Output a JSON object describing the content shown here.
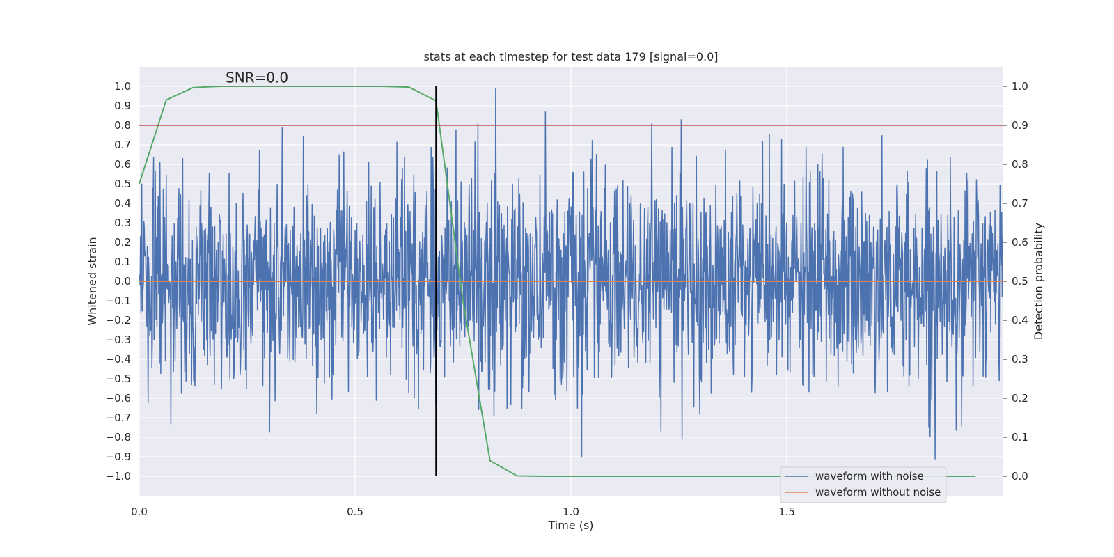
{
  "chart_data": {
    "type": "line",
    "title": "stats at each timestep for test data 179 [signal=0.0]",
    "xlabel": "Time (s)",
    "ylabel_left": "Whitened strain",
    "ylabel_right": "Detection probability",
    "xlim": [
      0.0,
      2.0
    ],
    "ylim_left": [
      -1.1,
      1.1
    ],
    "ylim_right": [
      -0.05,
      1.05
    ],
    "x_ticks": [
      0.0,
      0.5,
      1.0,
      1.5
    ],
    "x_tick_labels": [
      "0.0",
      "0.5",
      "1.0",
      "1.5"
    ],
    "y_left_ticks": [
      1.0,
      0.9,
      0.8,
      0.7,
      0.6,
      0.5,
      0.4,
      0.3,
      0.2,
      0.1,
      0.0,
      -0.1,
      -0.2,
      -0.3,
      -0.4,
      -0.5,
      -0.6,
      -0.7,
      -0.8,
      -0.9,
      -1.0
    ],
    "y_left_tick_labels": [
      "1.0",
      "0.9",
      "0.8",
      "0.7",
      "0.6",
      "0.5",
      "0.4",
      "0.3",
      "0.2",
      "0.1",
      "0.0",
      "−0.1",
      "−0.2",
      "−0.3",
      "−0.4",
      "−0.5",
      "−0.6",
      "−0.7",
      "−0.8",
      "−0.9",
      "−1.0"
    ],
    "y_right_ticks": [
      1.0,
      0.9,
      0.8,
      0.7,
      0.6,
      0.5,
      0.4,
      0.3,
      0.2,
      0.1,
      0.0
    ],
    "y_right_tick_labels": [
      "1.0",
      "0.9",
      "0.8",
      "0.7",
      "0.6",
      "0.5",
      "0.4",
      "0.3",
      "0.2",
      "0.1",
      "0.0"
    ],
    "annotation": "SNR=0.0",
    "annotation_pos": [
      0.2,
      1.02
    ],
    "grid": true,
    "legend": "lower-right",
    "series": [
      {
        "name": "waveform with noise",
        "color": "#4c72b0",
        "axis": "left",
        "kind": "noise",
        "x_start": 0.0,
        "x_end": 2.0,
        "count": 2048,
        "amplitude": 1.0
      },
      {
        "name": "waveform without noise",
        "color": "#dd8452",
        "axis": "left",
        "x": [
          0.0,
          2.0
        ],
        "y": [
          0.0,
          0.0
        ]
      },
      {
        "color": "#55a868",
        "axis": "right",
        "x": [
          0.0,
          0.0625,
          0.125,
          0.1875,
          0.25,
          0.3125,
          0.375,
          0.4375,
          0.5,
          0.5625,
          0.625,
          0.6875,
          0.75,
          0.8125,
          0.875,
          0.9375,
          1.0,
          1.0625,
          1.125,
          1.1875,
          1.25,
          1.3125,
          1.375,
          1.4375,
          1.5,
          1.5625,
          1.625,
          1.6875,
          1.75,
          1.8125,
          1.9375
        ],
        "y": [
          0.75,
          0.965,
          0.997,
          1.0,
          1.0,
          1.0,
          1.0,
          1.0,
          1.0,
          1.0,
          0.998,
          0.963,
          0.45,
          0.04,
          0.001,
          0.0,
          0.0,
          0.0,
          0.0,
          0.0,
          0.0,
          0.0,
          0.0,
          0.0,
          0.0,
          0.0,
          0.0,
          0.0,
          0.0,
          0.0,
          0.0
        ]
      },
      {
        "color": "#c44e52",
        "axis": "left",
        "kind": "hline",
        "y": 0.8
      },
      {
        "color": "#000000",
        "axis": "left",
        "kind": "vline",
        "x": 0.6875,
        "y_range": [
          -1.0,
          1.0
        ]
      }
    ]
  }
}
